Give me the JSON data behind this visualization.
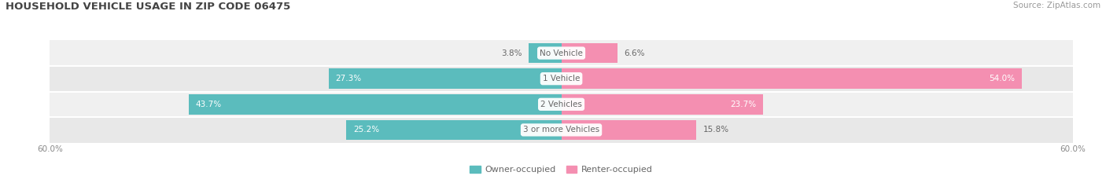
{
  "title": "HOUSEHOLD VEHICLE USAGE IN ZIP CODE 06475",
  "source": "Source: ZipAtlas.com",
  "categories": [
    "No Vehicle",
    "1 Vehicle",
    "2 Vehicles",
    "3 or more Vehicles"
  ],
  "owner_values": [
    3.8,
    27.3,
    43.7,
    25.2
  ],
  "renter_values": [
    6.6,
    54.0,
    23.7,
    15.8
  ],
  "owner_color": "#5bbcbd",
  "renter_color": "#f48fb1",
  "label_color_dark": "#666666",
  "label_color_white": "#ffffff",
  "row_colors": [
    "#f0f0f0",
    "#e8e8e8",
    "#f0f0f0",
    "#e8e8e8"
  ],
  "axis_max": 60.0,
  "bar_height": 0.78,
  "figsize": [
    14.06,
    2.33
  ],
  "dpi": 100,
  "title_fontsize": 9.5,
  "source_fontsize": 7.5,
  "bar_label_fontsize": 7.5,
  "category_fontsize": 7.5,
  "legend_fontsize": 8,
  "tick_fontsize": 7.5
}
